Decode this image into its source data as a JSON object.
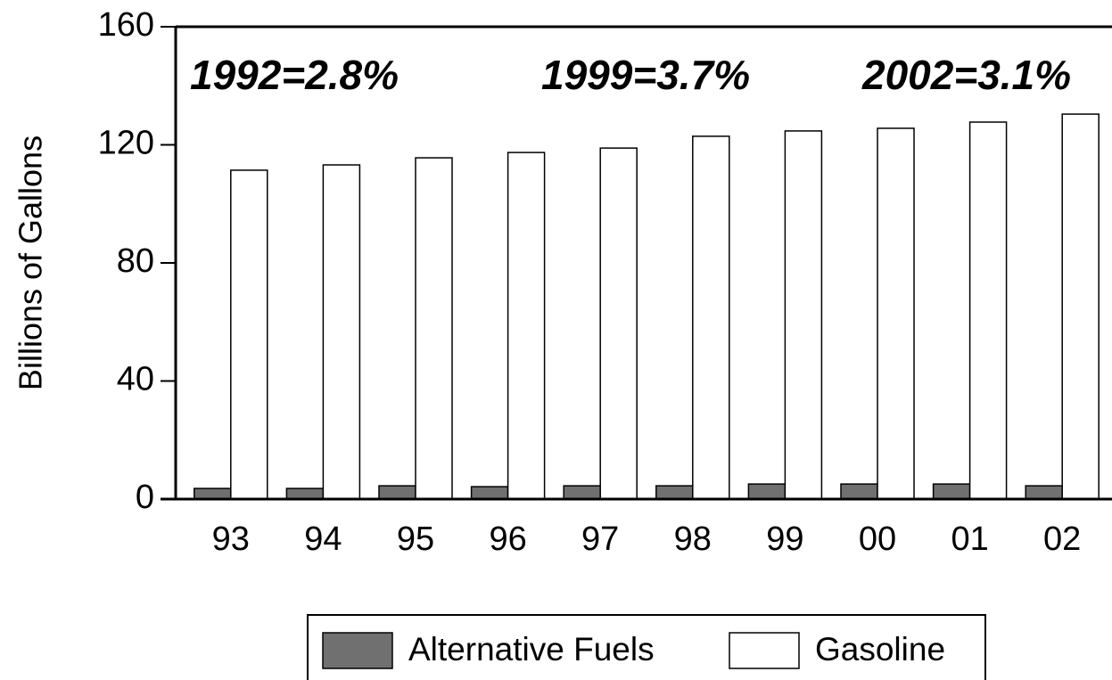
{
  "chart_data": {
    "type": "bar",
    "y_label": "Billions of Gallons",
    "annotations": [
      "1992=2.8%",
      "1999=3.7%",
      "2002=3.1%"
    ],
    "categories": [
      "93",
      "94",
      "95",
      "96",
      "97",
      "98",
      "99",
      "00",
      "01",
      "02"
    ],
    "series": [
      {
        "name": "Alternative Fuels",
        "color": "#707070",
        "values": [
          3.6,
          3.6,
          4.5,
          4.2,
          4.5,
          4.5,
          5.1,
          5.1,
          5.1,
          4.5
        ]
      },
      {
        "name": "Gasoline",
        "color": "#ffffff",
        "values": [
          111.4,
          113.2,
          115.6,
          117.4,
          118.9,
          122.9,
          124.7,
          125.6,
          127.7,
          130.4
        ]
      }
    ],
    "ylim": [
      0,
      160
    ],
    "yticks": [
      0,
      40,
      80,
      120,
      160
    ],
    "legend": "bottom"
  }
}
